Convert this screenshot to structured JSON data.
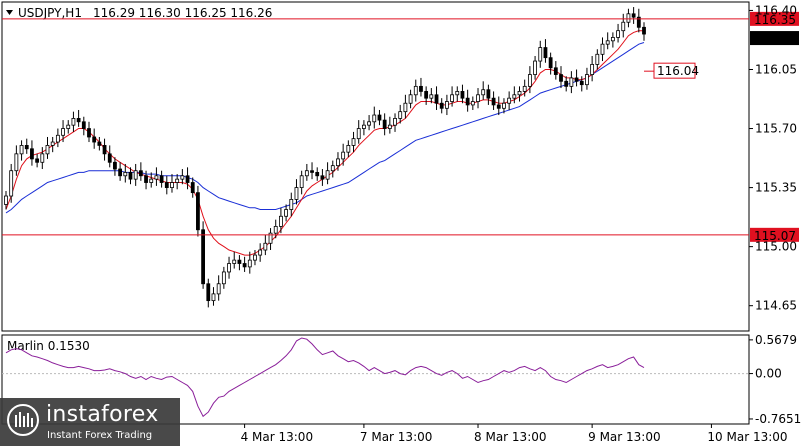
{
  "header": {
    "symbol": "USDJPY,H1",
    "ohlc": "116.29 116.30 116.25 116.26"
  },
  "indicator": {
    "label": "Marlin 0.1530"
  },
  "brand": {
    "name": "instaforex",
    "tagline": "Instant Forex Trading"
  },
  "colors": {
    "candles": "#000000",
    "ma_red": "#e0101a",
    "ma_blue": "#1a2fd6",
    "hline": "#e01020",
    "oscillator": "#8a1f9a",
    "price_tag_bg": "#000000"
  },
  "chart_data": [
    {
      "type": "candlestick",
      "title": "USDJPY,H1",
      "ylim": [
        114.5,
        116.45
      ],
      "y_ticks": [
        "116.40",
        "116.05",
        "115.70",
        "115.35",
        "115.00",
        "114.65"
      ],
      "y_tick_values": [
        116.4,
        116.05,
        115.7,
        115.35,
        115.0,
        114.65
      ],
      "x_tick_labels": [
        "4 Mar 13:00",
        "7 Mar 13:00",
        "8 Mar 13:00",
        "9 Mar 13:00",
        "10 Mar 13:00"
      ],
      "x_tick_index": [
        46,
        69,
        91,
        113,
        136
      ],
      "horizontal_lines": [
        {
          "value": 116.35,
          "label": "116.35"
        },
        {
          "value": 115.07,
          "label": "115.07"
        }
      ],
      "current_price": {
        "value": 116.26,
        "label": "116.26"
      },
      "annotation": {
        "value": 116.04,
        "label": "116.04"
      },
      "close": [
        115.3,
        115.45,
        115.55,
        115.6,
        115.58,
        115.52,
        115.5,
        115.55,
        115.6,
        115.62,
        115.66,
        115.7,
        115.72,
        115.76,
        115.74,
        115.7,
        115.65,
        115.62,
        115.6,
        115.55,
        115.5,
        115.46,
        115.42,
        115.44,
        115.4,
        115.45,
        115.42,
        115.38,
        115.4,
        115.42,
        115.38,
        115.35,
        115.38,
        115.4,
        115.42,
        115.38,
        115.32,
        115.1,
        114.78,
        114.68,
        114.72,
        114.78,
        114.85,
        114.9,
        114.92,
        114.9,
        114.88,
        114.92,
        114.95,
        114.98,
        115.02,
        115.08,
        115.12,
        115.18,
        115.22,
        115.28,
        115.35,
        115.42,
        115.45,
        115.44,
        115.42,
        115.4,
        115.45,
        115.48,
        115.52,
        115.56,
        115.6,
        115.64,
        115.7,
        115.72,
        115.74,
        115.78,
        115.75,
        115.7,
        115.72,
        115.76,
        115.8,
        115.85,
        115.9,
        115.95,
        115.92,
        115.88,
        115.9,
        115.85,
        115.82,
        115.86,
        115.9,
        115.92,
        115.88,
        115.84,
        115.86,
        115.9,
        115.93,
        115.88,
        115.84,
        115.82,
        115.85,
        115.88,
        115.9,
        115.92,
        115.95,
        116.02,
        116.1,
        116.18,
        116.12,
        116.06,
        116.02,
        115.98,
        115.95,
        116.0,
        115.98,
        115.96,
        116.02,
        116.08,
        116.14,
        116.2,
        116.22,
        116.24,
        116.28,
        116.33,
        116.38,
        116.36,
        116.3,
        116.26
      ],
      "ma_red": [
        115.22,
        115.3,
        115.4,
        115.48,
        115.52,
        115.54,
        115.55,
        115.56,
        115.58,
        115.6,
        115.62,
        115.64,
        115.66,
        115.68,
        115.7,
        115.7,
        115.68,
        115.65,
        115.62,
        115.58,
        115.55,
        115.52,
        115.5,
        115.48,
        115.46,
        115.44,
        115.43,
        115.42,
        115.41,
        115.4,
        115.39,
        115.38,
        115.38,
        115.38,
        115.38,
        115.37,
        115.34,
        115.28,
        115.18,
        115.1,
        115.05,
        115.02,
        115.0,
        114.98,
        114.97,
        114.96,
        114.95,
        114.95,
        114.96,
        114.98,
        115.0,
        115.03,
        115.06,
        115.1,
        115.14,
        115.18,
        115.23,
        115.28,
        115.33,
        115.36,
        115.38,
        115.4,
        115.42,
        115.44,
        115.47,
        115.5,
        115.53,
        115.56,
        115.6,
        115.63,
        115.66,
        115.69,
        115.7,
        115.7,
        115.71,
        115.72,
        115.74,
        115.76,
        115.8,
        115.84,
        115.86,
        115.86,
        115.86,
        115.85,
        115.84,
        115.84,
        115.85,
        115.86,
        115.86,
        115.85,
        115.85,
        115.86,
        115.87,
        115.87,
        115.86,
        115.85,
        115.85,
        115.86,
        115.87,
        115.89,
        115.91,
        115.94,
        115.98,
        116.03,
        116.05,
        116.05,
        116.04,
        116.02,
        116.0,
        116.0,
        115.99,
        115.99,
        116.0,
        116.02,
        116.05,
        116.08,
        116.11,
        116.14,
        116.17,
        116.21,
        116.25,
        116.27,
        116.28,
        116.28
      ],
      "ma_blue": [
        115.2,
        115.22,
        115.25,
        115.28,
        115.3,
        115.32,
        115.34,
        115.36,
        115.38,
        115.39,
        115.4,
        115.41,
        115.42,
        115.43,
        115.44,
        115.44,
        115.45,
        115.45,
        115.45,
        115.45,
        115.45,
        115.45,
        115.45,
        115.44,
        115.44,
        115.44,
        115.44,
        115.43,
        115.43,
        115.43,
        115.42,
        115.42,
        115.42,
        115.42,
        115.42,
        115.41,
        115.4,
        115.38,
        115.35,
        115.33,
        115.31,
        115.29,
        115.28,
        115.27,
        115.26,
        115.25,
        115.24,
        115.23,
        115.23,
        115.22,
        115.22,
        115.22,
        115.22,
        115.23,
        115.24,
        115.25,
        115.26,
        115.28,
        115.3,
        115.31,
        115.32,
        115.33,
        115.34,
        115.35,
        115.36,
        115.37,
        115.38,
        115.4,
        115.42,
        115.44,
        115.46,
        115.48,
        115.5,
        115.51,
        115.53,
        115.55,
        115.57,
        115.59,
        115.61,
        115.63,
        115.64,
        115.65,
        115.66,
        115.67,
        115.68,
        115.69,
        115.7,
        115.71,
        115.72,
        115.73,
        115.74,
        115.75,
        115.76,
        115.77,
        115.78,
        115.79,
        115.8,
        115.81,
        115.82,
        115.83,
        115.85,
        115.87,
        115.89,
        115.91,
        115.92,
        115.93,
        115.94,
        115.95,
        115.96,
        115.97,
        115.98,
        115.99,
        116.0,
        116.02,
        116.04,
        116.06,
        116.08,
        116.1,
        116.12,
        116.14,
        116.16,
        116.18,
        116.2,
        116.21
      ]
    },
    {
      "type": "line",
      "title": "Marlin 0.1530",
      "ylim": [
        -0.85,
        0.65
      ],
      "y_ticks": [
        "0.5679",
        "0.00",
        "-0.7651"
      ],
      "y_tick_values": [
        0.5679,
        0.0,
        -0.7651
      ],
      "values": [
        0.35,
        0.4,
        0.42,
        0.4,
        0.35,
        0.3,
        0.28,
        0.25,
        0.22,
        0.18,
        0.15,
        0.12,
        0.1,
        0.1,
        0.12,
        0.1,
        0.08,
        0.05,
        0.05,
        0.06,
        0.08,
        0.05,
        0.03,
        0.0,
        -0.05,
        -0.08,
        -0.05,
        -0.1,
        -0.05,
        -0.08,
        -0.1,
        -0.06,
        -0.05,
        -0.1,
        -0.15,
        -0.2,
        -0.3,
        -0.55,
        -0.72,
        -0.65,
        -0.5,
        -0.4,
        -0.38,
        -0.3,
        -0.25,
        -0.2,
        -0.15,
        -0.1,
        -0.05,
        0.0,
        0.05,
        0.1,
        0.15,
        0.22,
        0.3,
        0.4,
        0.55,
        0.6,
        0.58,
        0.5,
        0.4,
        0.32,
        0.35,
        0.38,
        0.3,
        0.25,
        0.2,
        0.22,
        0.18,
        0.12,
        0.05,
        0.1,
        0.05,
        0.0,
        0.02,
        0.05,
        0.0,
        -0.02,
        0.05,
        0.1,
        0.12,
        0.1,
        0.05,
        0.0,
        -0.03,
        0.02,
        0.05,
        0.0,
        -0.08,
        -0.05,
        -0.1,
        -0.15,
        -0.12,
        -0.1,
        -0.05,
        0.0,
        0.05,
        0.02,
        0.05,
        0.1,
        0.12,
        0.08,
        0.05,
        0.1,
        0.05,
        -0.05,
        -0.1,
        -0.12,
        -0.15,
        -0.1,
        -0.05,
        0.0,
        0.05,
        0.08,
        0.12,
        0.15,
        0.1,
        0.12,
        0.15,
        0.2,
        0.25,
        0.28,
        0.15,
        0.1
      ]
    }
  ]
}
